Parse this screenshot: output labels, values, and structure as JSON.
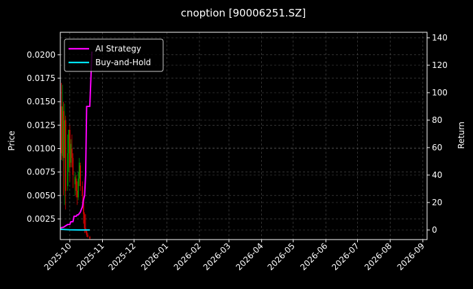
{
  "chart_data": {
    "type": "line",
    "title": "cnoption [90006251.SZ]",
    "xlabel": "",
    "ylabel": "Price",
    "y2label": "Return",
    "background": "#000000",
    "grid": true,
    "legend_position": "top-left",
    "x_range": [
      "2025-09-22",
      "2026-09-05"
    ],
    "ylim": [
      0.0003,
      0.0224
    ],
    "y2lim": [
      -7,
      144
    ],
    "y_ticks": [
      0.0025,
      0.005,
      0.0075,
      0.01,
      0.0125,
      0.015,
      0.0175,
      0.02
    ],
    "y_tick_labels": [
      "0.0025",
      "0.0050",
      "0.0075",
      "0.0100",
      "0.0125",
      "0.0150",
      "0.0175",
      "0.0200"
    ],
    "y2_ticks": [
      0,
      20,
      40,
      60,
      80,
      100,
      120,
      140
    ],
    "y2_tick_labels": [
      "0",
      "20",
      "40",
      "60",
      "80",
      "100",
      "120",
      "140"
    ],
    "x_ticks": [
      "2025-10-01",
      "2025-11-01",
      "2025-12-01",
      "2026-01-01",
      "2026-02-01",
      "2026-03-01",
      "2026-04-01",
      "2026-05-01",
      "2026-06-01",
      "2026-07-01",
      "2026-08-01",
      "2026-09-01"
    ],
    "x_tick_labels": [
      "2025-10",
      "2025-11",
      "2025-12",
      "2026-01",
      "2026-02",
      "2026-03",
      "2026-04",
      "2026-05",
      "2026-06",
      "2026-07",
      "2026-08",
      "2026-09"
    ],
    "colors": {
      "up": "#00a000",
      "down": "#e00000",
      "strategy": "#ff00ff",
      "buy_hold": "#00e5ff",
      "grid": "#555555",
      "axis": "#ffffff"
    },
    "candles": [
      {
        "date": "2025-09-23",
        "open": 0.0145,
        "close": 0.0095,
        "high": 0.017,
        "low": 0.0088
      },
      {
        "date": "2025-09-24",
        "open": 0.0092,
        "close": 0.0145,
        "high": 0.0168,
        "low": 0.0087
      },
      {
        "date": "2025-09-25",
        "open": 0.014,
        "close": 0.009,
        "high": 0.015,
        "low": 0.005
      },
      {
        "date": "2025-09-26",
        "open": 0.009,
        "close": 0.013,
        "high": 0.0148,
        "low": 0.004
      },
      {
        "date": "2025-09-27",
        "open": 0.013,
        "close": 0.0055,
        "high": 0.0135,
        "low": 0.0035
      },
      {
        "date": "2025-09-29",
        "open": 0.006,
        "close": 0.0095,
        "high": 0.0115,
        "low": 0.0055
      },
      {
        "date": "2025-09-30",
        "open": 0.0095,
        "close": 0.012,
        "high": 0.012,
        "low": 0.0075
      },
      {
        "date": "2025-10-01",
        "open": 0.012,
        "close": 0.008,
        "high": 0.0125,
        "low": 0.0065
      },
      {
        "date": "2025-10-02",
        "open": 0.0085,
        "close": 0.0105,
        "high": 0.011,
        "low": 0.008
      },
      {
        "date": "2025-10-03",
        "open": 0.01,
        "close": 0.009,
        "high": 0.0115,
        "low": 0.008
      },
      {
        "date": "2025-10-04",
        "open": 0.009,
        "close": 0.0072,
        "high": 0.0095,
        "low": 0.0058
      },
      {
        "date": "2025-10-06",
        "open": 0.0062,
        "close": 0.007,
        "high": 0.0075,
        "low": 0.005
      },
      {
        "date": "2025-10-07",
        "open": 0.0068,
        "close": 0.0055,
        "high": 0.0072,
        "low": 0.0048
      },
      {
        "date": "2025-10-08",
        "open": 0.0055,
        "close": 0.0048,
        "high": 0.0065,
        "low": 0.004
      },
      {
        "date": "2025-10-09",
        "open": 0.0048,
        "close": 0.0068,
        "high": 0.0075,
        "low": 0.0045
      },
      {
        "date": "2025-10-10",
        "open": 0.0068,
        "close": 0.0085,
        "high": 0.009,
        "low": 0.006
      },
      {
        "date": "2025-10-11",
        "open": 0.0082,
        "close": 0.006,
        "high": 0.0085,
        "low": 0.0055
      },
      {
        "date": "2025-10-13",
        "open": 0.006,
        "close": 0.005,
        "high": 0.0065,
        "low": 0.004
      },
      {
        "date": "2025-10-14",
        "open": 0.0048,
        "close": 0.003,
        "high": 0.005,
        "low": 0.002
      },
      {
        "date": "2025-10-15",
        "open": 0.003,
        "close": 0.0015,
        "high": 0.0032,
        "low": 0.001
      },
      {
        "date": "2025-10-16",
        "open": 0.0015,
        "close": 0.0012,
        "high": 0.003,
        "low": 0.001
      },
      {
        "date": "2025-10-17",
        "open": 0.0012,
        "close": 0.0008,
        "high": 0.0013,
        "low": 0.0006
      },
      {
        "date": "2025-10-18",
        "open": 0.0008,
        "close": 0.0006,
        "high": 0.001,
        "low": 0.0005
      },
      {
        "date": "2025-10-20",
        "open": 0.0006,
        "close": 0.0004,
        "high": 0.0007,
        "low": 0.0003
      }
    ],
    "series": [
      {
        "name": "AI Strategy",
        "axis": "right",
        "x": [
          "2025-09-22",
          "2025-09-25",
          "2025-09-27",
          "2025-09-29",
          "2025-10-01",
          "2025-10-02",
          "2025-10-04",
          "2025-10-05",
          "2025-10-07",
          "2025-10-08",
          "2025-10-09",
          "2025-10-11",
          "2025-10-12",
          "2025-10-13",
          "2025-10-14",
          "2025-10-15",
          "2025-10-16",
          "2025-10-17",
          "2025-10-18",
          "2025-10-19",
          "2025-10-20",
          "2025-10-22"
        ],
        "values": [
          1.5,
          2,
          3,
          4,
          4,
          6,
          6,
          10,
          10,
          11,
          11,
          13,
          15,
          17,
          22,
          25,
          40,
          90,
          90,
          90,
          90,
          130
        ]
      },
      {
        "name": "Buy-and-Hold",
        "axis": "right",
        "x": [
          "2025-09-22",
          "2025-10-01",
          "2025-10-10",
          "2025-10-20"
        ],
        "values": [
          0.5,
          0.1,
          0,
          0
        ]
      }
    ]
  }
}
